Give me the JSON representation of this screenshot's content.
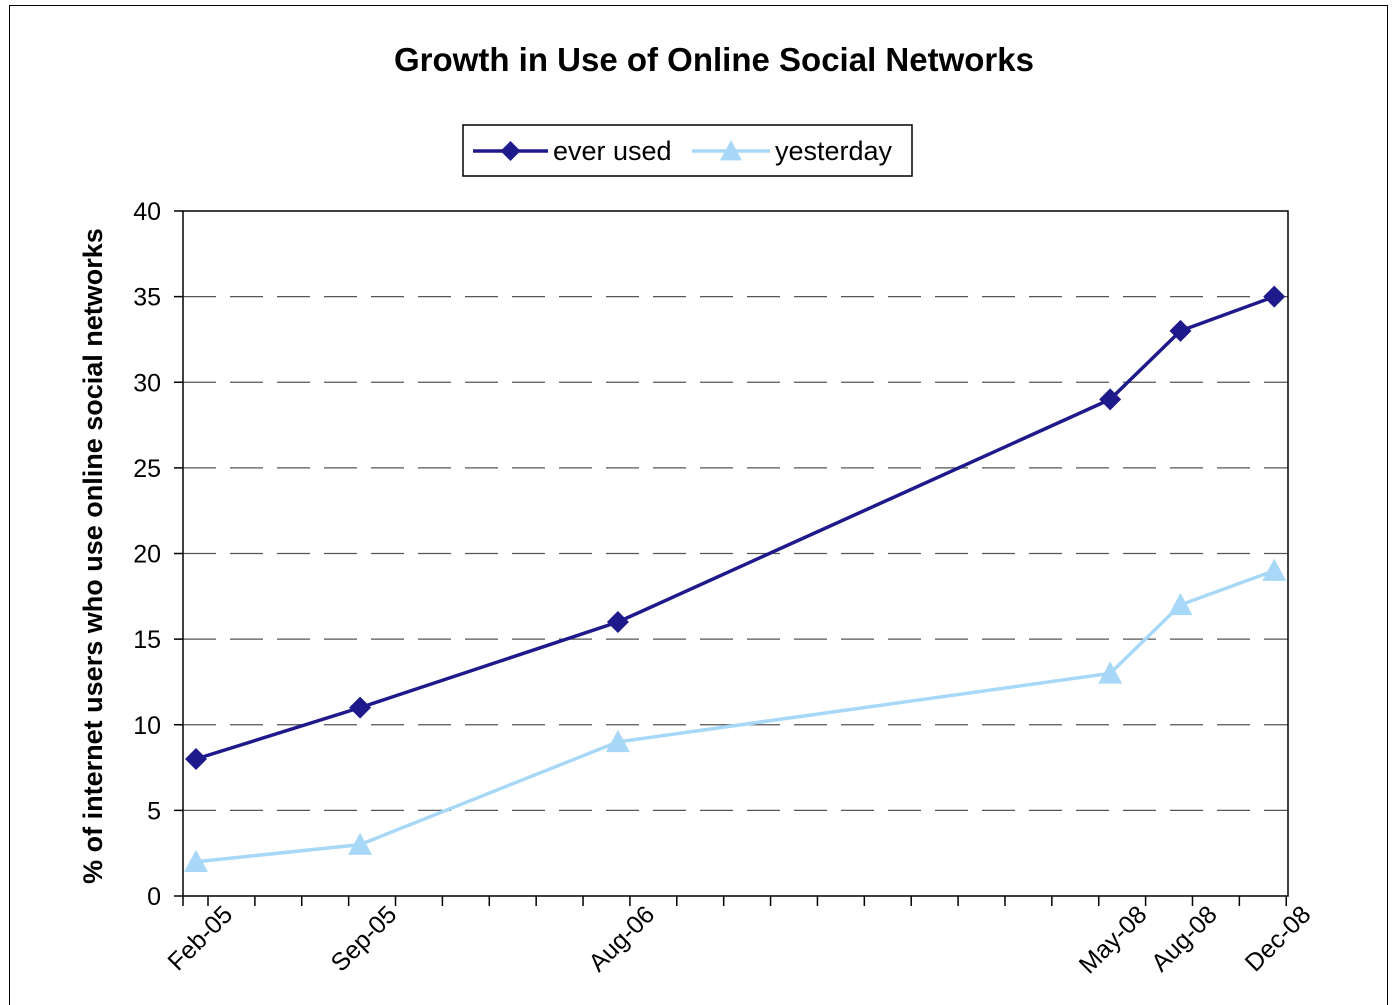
{
  "chart_data": {
    "type": "line",
    "title": "Growth in Use of Online Social Networks",
    "ylabel": "% of internet users who use online social networks",
    "xlabel": "",
    "ylim": [
      0,
      40
    ],
    "yticks": [
      0,
      5,
      10,
      15,
      20,
      25,
      30,
      35,
      40
    ],
    "x_months": [
      0,
      7,
      18,
      39,
      42,
      46
    ],
    "categories": [
      "Feb-05",
      "Sep-05",
      "Aug-06",
      "May-08",
      "Aug-08",
      "Dec-08"
    ],
    "series": [
      {
        "name": "ever used",
        "values": [
          8,
          11,
          16,
          29,
          33,
          35
        ],
        "color": "#1f1a8c",
        "marker": "diamond"
      },
      {
        "name": "yesterday",
        "values": [
          2,
          3,
          9,
          13,
          17,
          19
        ],
        "color": "#a8d8f8",
        "marker": "triangle"
      }
    ],
    "grid": "horizontal dashed",
    "legend": "top-center"
  }
}
